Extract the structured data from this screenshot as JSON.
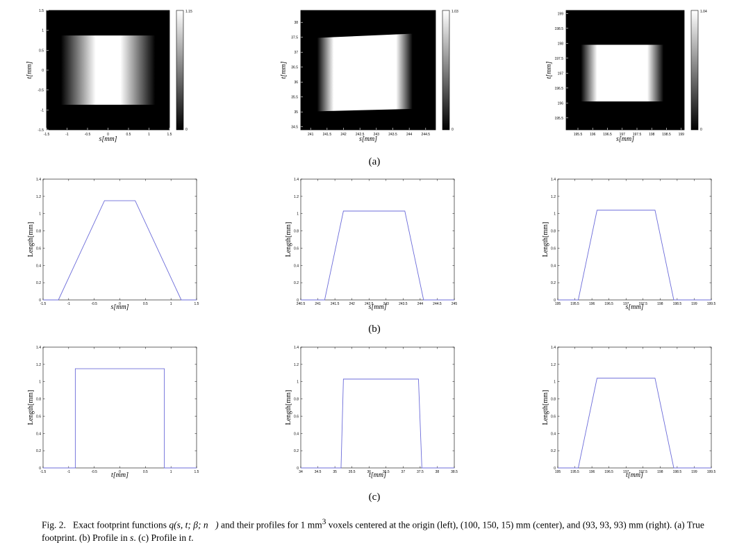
{
  "chart_data": [
    {
      "type": "heatmap",
      "id": "a1",
      "xlabel": "s[mm]",
      "ylabel": "t[mm]",
      "xlim": [
        -1.5,
        1.5
      ],
      "ylim": [
        -1.5,
        1.5
      ],
      "xticks": [
        "-1.5",
        "-1",
        "-0.5",
        "0",
        "0.5",
        "1",
        "1.5"
      ],
      "yticks": [
        "1.5",
        "1",
        "0.5",
        "0",
        "-0.5",
        "-1",
        "-1.5"
      ],
      "colorbar": {
        "min": "0",
        "max": "1.15"
      },
      "footprint": {
        "s": [
          -1.15,
          -0.3,
          0.3,
          1.15
        ],
        "t_top": [
          0.87,
          0.87
        ],
        "t_bottom": [
          -0.87,
          -0.87
        ],
        "peak": 1.15
      }
    },
    {
      "type": "heatmap",
      "id": "a2",
      "xlabel": "s[mm]",
      "ylabel": "t[mm]",
      "xlim": [
        240.7,
        244.8
      ],
      "ylim": [
        34.4,
        38.4
      ],
      "xticks": [
        "241",
        "241.5",
        "242",
        "242.5",
        "243",
        "243.5",
        "244",
        "244.5"
      ],
      "yticks": [
        "38",
        "37.5",
        "37",
        "36.5",
        "36",
        "35.5",
        "35",
        "34.5"
      ],
      "colorbar": {
        "min": "0",
        "max": "1.03"
      },
      "footprint": {
        "s": [
          241.2,
          241.7,
          243.6,
          244.1
        ],
        "t_top": [
          37.48,
          37.62
        ],
        "t_bottom": [
          35.02,
          35.1
        ],
        "peak": 1.03
      }
    },
    {
      "type": "heatmap",
      "id": "a3",
      "xlabel": "s[mm]",
      "ylabel": "t[mm]",
      "xlim": [
        195.1,
        199.1
      ],
      "ylim": [
        195.1,
        199.1
      ],
      "xticks": [
        "195.5",
        "196",
        "196.5",
        "197",
        "197.5",
        "198",
        "198.5",
        "199"
      ],
      "yticks": [
        "199",
        "198.5",
        "198",
        "197.5",
        "197",
        "196.5",
        "196",
        "195.5"
      ],
      "colorbar": {
        "min": "0",
        "max": "1.04"
      },
      "footprint": {
        "s": [
          195.6,
          196.15,
          197.85,
          198.4
        ],
        "t_top": [
          197.95,
          197.95
        ],
        "t_bottom": [
          196.05,
          196.05
        ],
        "peak": 1.04
      }
    },
    {
      "type": "line",
      "id": "b1",
      "xlabel": "s[mm]",
      "ylabel": "Length[mm]",
      "xlim": [
        -1.5,
        1.5
      ],
      "ylim": [
        0,
        1.4
      ],
      "xticks": [
        "-1.5",
        "-1",
        "-0.5",
        "0",
        "0.5",
        "1",
        "1.5"
      ],
      "yticks": [
        "0",
        "0.2",
        "0.4",
        "0.6",
        "0.8",
        "1",
        "1.2",
        "1.4"
      ],
      "x": [
        -1.5,
        -1.2,
        -0.3,
        0.3,
        1.2,
        1.5
      ],
      "y": [
        0,
        0,
        1.15,
        1.15,
        0,
        0
      ]
    },
    {
      "type": "line",
      "id": "b2",
      "xlabel": "s[mm]",
      "ylabel": "Length[mm]",
      "xlim": [
        240.5,
        245
      ],
      "ylim": [
        0,
        1.4
      ],
      "xticks": [
        "240.5",
        "241",
        "241.5",
        "242",
        "242.5",
        "243",
        "243.5",
        "244",
        "244.5",
        "245"
      ],
      "yticks": [
        "0",
        "0.2",
        "0.4",
        "0.6",
        "0.8",
        "1",
        "1.2",
        "1.4"
      ],
      "x": [
        240.5,
        241.2,
        241.75,
        243.55,
        244.1,
        245
      ],
      "y": [
        0,
        0,
        1.03,
        1.03,
        0,
        0
      ]
    },
    {
      "type": "line",
      "id": "b3",
      "xlabel": "s[mm]",
      "ylabel": "Length[mm]",
      "xlim": [
        195,
        199.5
      ],
      "ylim": [
        0,
        1.4
      ],
      "xticks": [
        "195",
        "195.5",
        "196",
        "196.5",
        "197",
        "197.5",
        "198",
        "198.5",
        "199",
        "199.5"
      ],
      "yticks": [
        "0",
        "0.2",
        "0.4",
        "0.6",
        "0.8",
        "1",
        "1.2",
        "1.4"
      ],
      "x": [
        195,
        195.6,
        196.15,
        197.85,
        198.4,
        199.5
      ],
      "y": [
        0,
        0,
        1.04,
        1.04,
        0,
        0
      ]
    },
    {
      "type": "line",
      "id": "c1",
      "xlabel": "t[mm]",
      "ylabel": "Length[mm]",
      "xlim": [
        -1.5,
        1.5
      ],
      "ylim": [
        0,
        1.4
      ],
      "xticks": [
        "-1.5",
        "-1",
        "-0.5",
        "0",
        "0.5",
        "1",
        "1.5"
      ],
      "yticks": [
        "0",
        "0.2",
        "0.4",
        "0.6",
        "0.8",
        "1",
        "1.2",
        "1.4"
      ],
      "x": [
        -1.5,
        -0.87,
        -0.87,
        0.87,
        0.87,
        1.5
      ],
      "y": [
        0,
        0,
        1.15,
        1.15,
        0,
        0
      ]
    },
    {
      "type": "line",
      "id": "c2",
      "xlabel": "t[mm]",
      "ylabel": "Length[mm]",
      "xlim": [
        34,
        38.5
      ],
      "ylim": [
        0,
        1.4
      ],
      "xticks": [
        "34",
        "34.5",
        "35",
        "35.5",
        "36",
        "36.5",
        "37",
        "37.5",
        "38",
        "38.5"
      ],
      "yticks": [
        "0",
        "0.2",
        "0.4",
        "0.6",
        "0.8",
        "1",
        "1.2",
        "1.4"
      ],
      "x": [
        34,
        35.18,
        35.25,
        37.45,
        37.55,
        38.5
      ],
      "y": [
        0,
        0,
        1.03,
        1.03,
        0,
        0
      ]
    },
    {
      "type": "line",
      "id": "c3",
      "xlabel": "t[mm]",
      "ylabel": "Length[mm]",
      "xlim": [
        195,
        199.5
      ],
      "ylim": [
        0,
        1.4
      ],
      "xticks": [
        "195",
        "195.5",
        "196",
        "196.5",
        "197",
        "197.5",
        "198",
        "198.5",
        "199",
        "199.5"
      ],
      "yticks": [
        "0",
        "0.2",
        "0.4",
        "0.6",
        "0.8",
        "1",
        "1.2",
        "1.4"
      ],
      "x": [
        195,
        195.6,
        196.15,
        197.85,
        198.4,
        199.5
      ],
      "y": [
        0,
        0,
        1.04,
        1.04,
        0,
        0
      ]
    }
  ],
  "panel_labels": {
    "a": "(a)",
    "b": "(b)",
    "c": "(c)"
  },
  "caption": {
    "fig": "Fig. 2.",
    "text1": "Exact footprint functions",
    "func": "q(s, t; β; n⃗)",
    "text2": "and their profiles for 1 mm",
    "sup": "3",
    "text3": "voxels centered at the origin (left),",
    "c1": "(100, 150, 15)",
    "text4": "mm (center), and",
    "c2": "(93, 93, 93)",
    "text5": "mm (right). (a) True footprint. (b) Profile in",
    "vs": "s",
    "text6": ". (c) Profile in",
    "vt": "t",
    "text7": "."
  },
  "colors": {
    "line": "#6b6bd9",
    "axis": "#000000",
    "background": "#ffffff"
  }
}
